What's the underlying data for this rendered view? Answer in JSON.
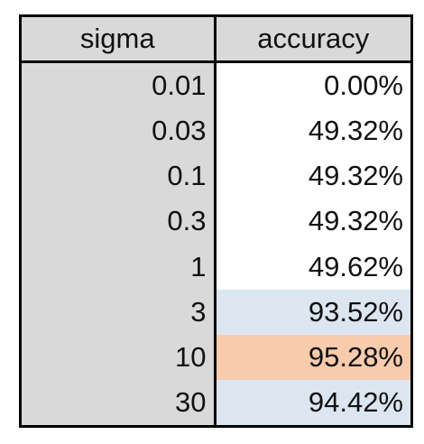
{
  "table": {
    "headers": {
      "sigma": "sigma",
      "accuracy": "accuracy"
    },
    "rows": [
      {
        "sigma": "0.01",
        "accuracy": "0.00%",
        "highlight": "none"
      },
      {
        "sigma": "0.03",
        "accuracy": "49.32%",
        "highlight": "none"
      },
      {
        "sigma": "0.1",
        "accuracy": "49.32%",
        "highlight": "none"
      },
      {
        "sigma": "0.3",
        "accuracy": "49.32%",
        "highlight": "none"
      },
      {
        "sigma": "1",
        "accuracy": "49.62%",
        "highlight": "none"
      },
      {
        "sigma": "3",
        "accuracy": "93.52%",
        "highlight": "blue"
      },
      {
        "sigma": "10",
        "accuracy": "95.28%",
        "highlight": "orange"
      },
      {
        "sigma": "30",
        "accuracy": "94.42%",
        "highlight": "blue"
      }
    ]
  },
  "colors": {
    "header_bg": "#d9d9d9",
    "sigma_col_bg": "#d9d9d9",
    "highlight_blue": "#dce6f1",
    "highlight_orange": "#f8cbad",
    "border": "#000000"
  }
}
